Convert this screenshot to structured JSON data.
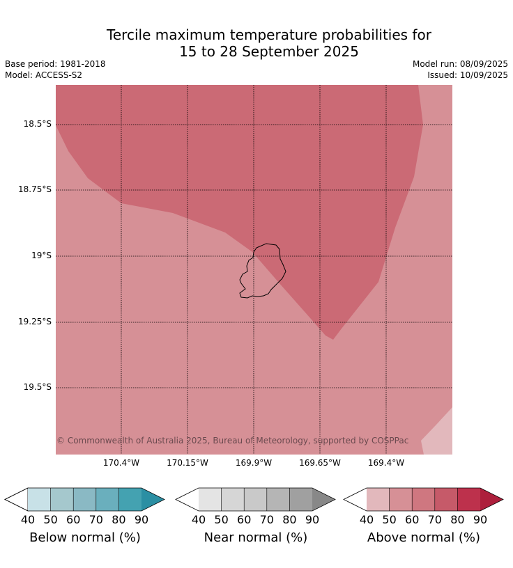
{
  "title_line1": "Tercile maximum temperature probabilities for",
  "title_line2": "15 to 28 September 2025",
  "meta": {
    "base_period": "Base period: 1981-2018",
    "model": "Model: ACCESS-S2",
    "model_run": "Model run: 08/09/2025",
    "issued": "Issued: 10/09/2025"
  },
  "copyright": "© Commonwealth of Australia 2025, Bureau of Meteorology, supported by COSPPac",
  "map": {
    "lat_labels": [
      "18.5°S",
      "18.75°S",
      "19°S",
      "19.25°S",
      "19.5°S"
    ],
    "lon_labels": [
      "170.4°W",
      "170.15°W",
      "169.9°W",
      "169.65°W",
      "169.4°W"
    ],
    "regions": [
      {
        "category": "Above normal",
        "range": "50-60%",
        "color": "#d69096"
      },
      {
        "category": "Above normal",
        "range": "60-70%",
        "color": "#cb6a75"
      },
      {
        "category": "Above normal",
        "range": "40-50%",
        "color": "#e2b8bc"
      }
    ]
  },
  "colorbars": [
    {
      "label": "Below normal (%)",
      "ticks": [
        "40",
        "50",
        "60",
        "70",
        "80",
        "90"
      ],
      "colors": [
        "#ffffff",
        "#c8e1e7",
        "#a5c8cd",
        "#8ab9c4",
        "#6aafbd",
        "#44a2b1",
        "#2b8fa3"
      ]
    },
    {
      "label": "Near normal (%)",
      "ticks": [
        "40",
        "50",
        "60",
        "70",
        "80",
        "90"
      ],
      "colors": [
        "#ffffff",
        "#e4e4e4",
        "#d6d6d6",
        "#c9c9c9",
        "#b5b5b5",
        "#a0a0a0",
        "#888888"
      ]
    },
    {
      "label": "Above normal (%)",
      "ticks": [
        "40",
        "50",
        "60",
        "70",
        "80",
        "90"
      ],
      "colors": [
        "#ffffff",
        "#e2b8bc",
        "#d69096",
        "#cf7780",
        "#c65a69",
        "#bd314c",
        "#ad1f3c"
      ]
    }
  ]
}
